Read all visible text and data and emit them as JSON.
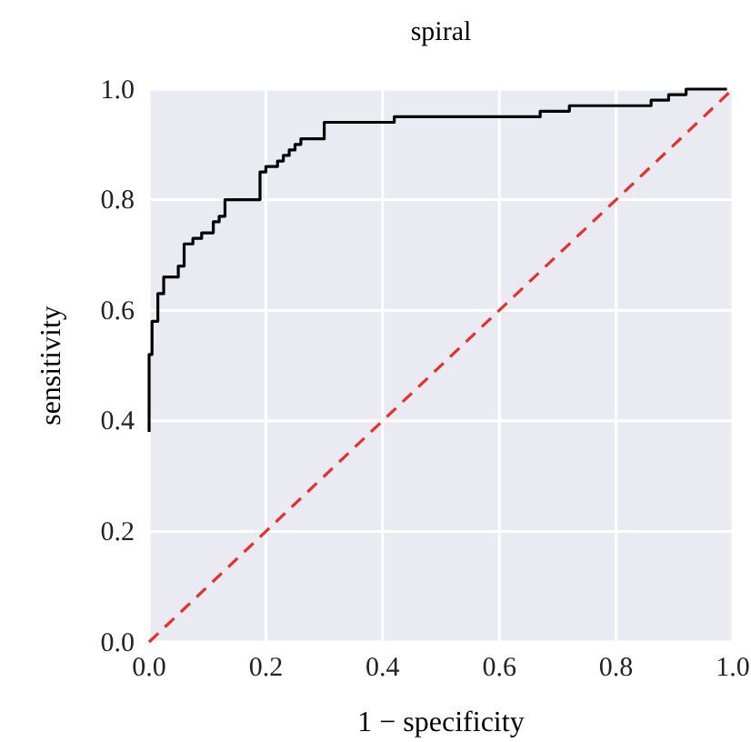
{
  "chart_data": {
    "type": "step",
    "title": "spiral",
    "xlabel": "1 − specificity",
    "ylabel": "sensitivity",
    "xlim": [
      0,
      1
    ],
    "ylim": [
      0,
      1
    ],
    "xticks": [
      {
        "value": 0,
        "label": "0.0"
      },
      {
        "value": 0.2,
        "label": "0.2"
      },
      {
        "value": 0.4,
        "label": "0.4"
      },
      {
        "value": 0.6,
        "label": "0.6"
      },
      {
        "value": 0.8,
        "label": "0.8"
      },
      {
        "value": 1,
        "label": "1.0"
      }
    ],
    "yticks": [
      {
        "value": 0,
        "label": "0.0"
      },
      {
        "value": 0.2,
        "label": "0.2"
      },
      {
        "value": 0.4,
        "label": "0.4"
      },
      {
        "value": 0.6,
        "label": "0.6"
      },
      {
        "value": 0.8,
        "label": "0.8"
      },
      {
        "value": 1,
        "label": "1.0"
      }
    ],
    "grid": true,
    "series": [
      {
        "color": "#000000",
        "line_style": "solid",
        "x": [
          0,
          0,
          0.005,
          0.015,
          0.025,
          0.05,
          0.06,
          0.075,
          0.09,
          0.11,
          0.12,
          0.13,
          0.14,
          0.19,
          0.2,
          0.22,
          0.23,
          0.24,
          0.25,
          0.26,
          0.3,
          0.42,
          0.67,
          0.72,
          0.86,
          0.89,
          0.92,
          0.99
        ],
        "values": [
          0.38,
          0.52,
          0.58,
          0.63,
          0.66,
          0.68,
          0.72,
          0.73,
          0.74,
          0.76,
          0.77,
          0.8,
          0.8,
          0.85,
          0.86,
          0.87,
          0.88,
          0.89,
          0.9,
          0.91,
          0.94,
          0.95,
          0.96,
          0.97,
          0.98,
          0.99,
          1,
          1
        ]
      },
      {
        "type": "line",
        "color": "#e8302a",
        "line_style": "dashed",
        "x": [
          0,
          1
        ],
        "values": [
          0,
          1
        ]
      }
    ]
  }
}
